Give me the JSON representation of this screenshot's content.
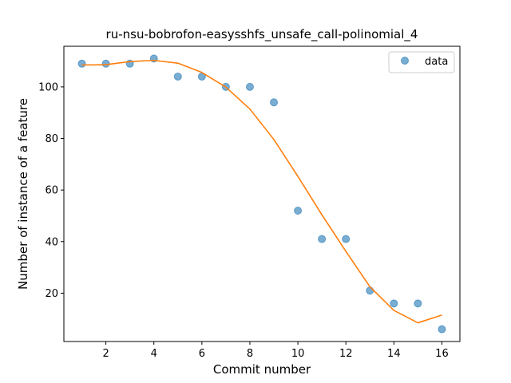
{
  "chart_data": {
    "type": "scatter",
    "title": "ru-nsu-bobrofon-easysshfs_unsafe_call-polinomial_4",
    "xlabel": "Commit number",
    "ylabel": "Number of instance of a feature",
    "xlim": [
      0.25,
      16.75
    ],
    "ylim": [
      1.25,
      115.75
    ],
    "xticks": [
      2,
      4,
      6,
      8,
      10,
      12,
      14,
      16
    ],
    "yticks": [
      20,
      40,
      60,
      80,
      100
    ],
    "legend_position": "top-right",
    "series": [
      {
        "name": "data",
        "kind": "scatter",
        "color": "#1f77b4",
        "x": [
          1,
          2,
          3,
          4,
          5,
          6,
          7,
          8,
          9,
          10,
          11,
          12,
          13,
          14,
          15,
          16
        ],
        "y": [
          109,
          109,
          109,
          111,
          104,
          104,
          100,
          100,
          94,
          52,
          41,
          41,
          21,
          16,
          16,
          6
        ]
      },
      {
        "kind": "line",
        "color": "#ff7f0e",
        "x": [
          1,
          2,
          3,
          4,
          5,
          6,
          7,
          8,
          9,
          10,
          11,
          12,
          13,
          14,
          15,
          16
        ],
        "y": [
          108.5,
          108.6,
          109.8,
          110.3,
          109.2,
          105.6,
          99.9,
          91.4,
          79.6,
          65.3,
          50.4,
          36.2,
          22.5,
          13.3,
          8.5,
          11.5
        ]
      }
    ]
  }
}
